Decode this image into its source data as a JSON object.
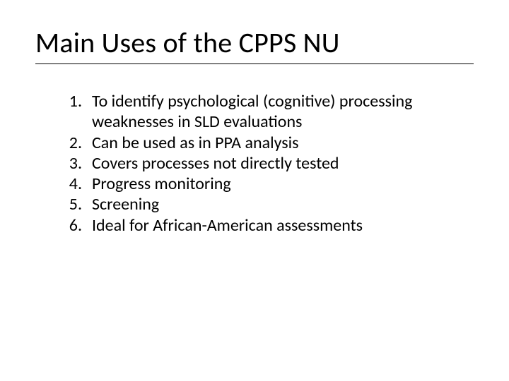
{
  "slide": {
    "title": "Main Uses of the CPPS NU",
    "title_fontsize": 40,
    "title_color": "#000000",
    "body_fontsize": 24,
    "body_color": "#000000",
    "background_color": "#ffffff",
    "rule_color": "#000000",
    "items": [
      "To identify psychological (cognitive) processing weaknesses in SLD evaluations",
      "Can be used as in PPA analysis",
      "Covers processes not directly tested",
      "Progress monitoring",
      "Screening",
      "Ideal for African-American assessments"
    ]
  }
}
